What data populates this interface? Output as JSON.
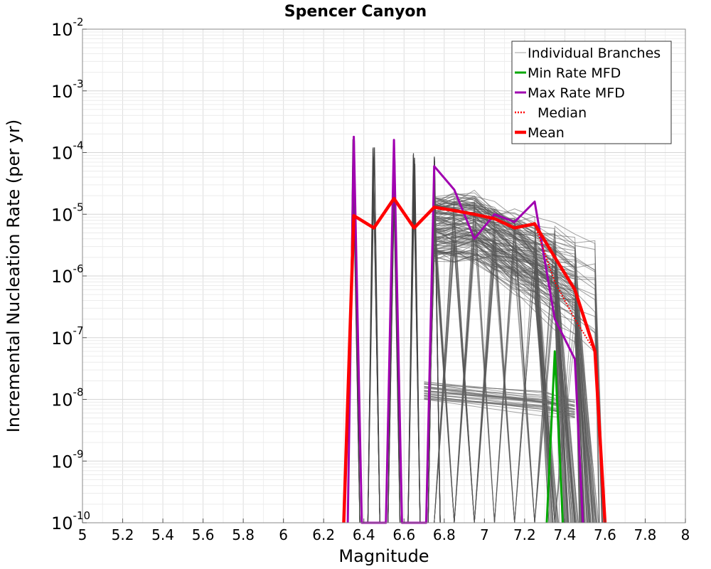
{
  "chart_data": {
    "type": "line",
    "title": "Spencer Canyon",
    "xlabel": "Magnitude",
    "ylabel": "Incremental Nucleation Rate (per yr)",
    "x_scale": "linear",
    "y_scale": "log",
    "xlim": [
      5,
      8
    ],
    "ylim": [
      1e-10,
      0.01
    ],
    "x_ticks": [
      "5",
      "5.2",
      "5.4",
      "5.6",
      "5.8",
      "6",
      "6.2",
      "6.4",
      "6.6",
      "6.8",
      "7",
      "7.2",
      "7.4",
      "7.6",
      "7.8",
      "8"
    ],
    "y_ticks": [
      {
        "base": "10",
        "exp": "-10"
      },
      {
        "base": "10",
        "exp": "-9"
      },
      {
        "base": "10",
        "exp": "-8"
      },
      {
        "base": "10",
        "exp": "-7"
      },
      {
        "base": "10",
        "exp": "-6"
      },
      {
        "base": "10",
        "exp": "-5"
      },
      {
        "base": "10",
        "exp": "-4"
      },
      {
        "base": "10",
        "exp": "-3"
      },
      {
        "base": "10",
        "exp": "-2"
      }
    ],
    "grid": true,
    "legend_position": "top-right",
    "legend": [
      {
        "label": "Individual Branches",
        "color": "#a0a0a0",
        "style": "thin"
      },
      {
        "label": "Min Rate MFD",
        "color": "#00a800",
        "style": "solid"
      },
      {
        "label": "Max Rate MFD",
        "color": "#a000b0",
        "style": "solid"
      },
      {
        "label": "Median",
        "color": "#ff0000",
        "style": "dotted"
      },
      {
        "label": "Mean",
        "color": "#ff0000",
        "style": "thick"
      }
    ],
    "series": [
      {
        "name": "Mean",
        "color": "#ff0000",
        "x": [
          6.3,
          6.35,
          6.45,
          6.55,
          6.65,
          6.75,
          6.85,
          6.95,
          7.05,
          7.15,
          7.25,
          7.35,
          7.45,
          7.55,
          7.6
        ],
        "y": [
          1e-10,
          9.5e-06,
          6e-06,
          1.8e-05,
          6e-06,
          1.3e-05,
          1.15e-05,
          1e-05,
          8.5e-06,
          6e-06,
          7e-06,
          2e-06,
          6e-07,
          6e-08,
          1e-10
        ]
      },
      {
        "name": "Median",
        "color": "#ff0000",
        "x": [
          6.3,
          6.35,
          6.45,
          6.55,
          6.65,
          6.75,
          6.85,
          6.95,
          7.05,
          7.15,
          7.25,
          7.35,
          7.45,
          7.55,
          7.6
        ],
        "y": [
          1e-10,
          9.5e-06,
          6e-06,
          1.8e-05,
          6e-06,
          1.3e-05,
          1.15e-05,
          1e-05,
          8.5e-06,
          6e-06,
          7e-06,
          8e-07,
          2e-07,
          6e-08,
          1e-10
        ]
      },
      {
        "name": "Max Rate MFD",
        "color": "#a000b0",
        "x": [
          6.32,
          6.35,
          6.39,
          6.51,
          6.55,
          6.59,
          6.71,
          6.75,
          6.85,
          6.95,
          7.05,
          7.15,
          7.25,
          7.35,
          7.45,
          7.49
        ],
        "y": [
          1e-10,
          0.00018,
          1e-10,
          1e-10,
          0.00016,
          1e-10,
          1e-10,
          6e-05,
          2.5e-05,
          4e-06,
          1e-05,
          7.5e-06,
          1.6e-05,
          2e-07,
          4.5e-08,
          1e-10
        ]
      },
      {
        "name": "Min Rate MFD",
        "color": "#00a800",
        "x": [
          7.31,
          7.35,
          7.39
        ],
        "y": [
          1e-10,
          6e-08,
          1e-10
        ]
      }
    ]
  }
}
